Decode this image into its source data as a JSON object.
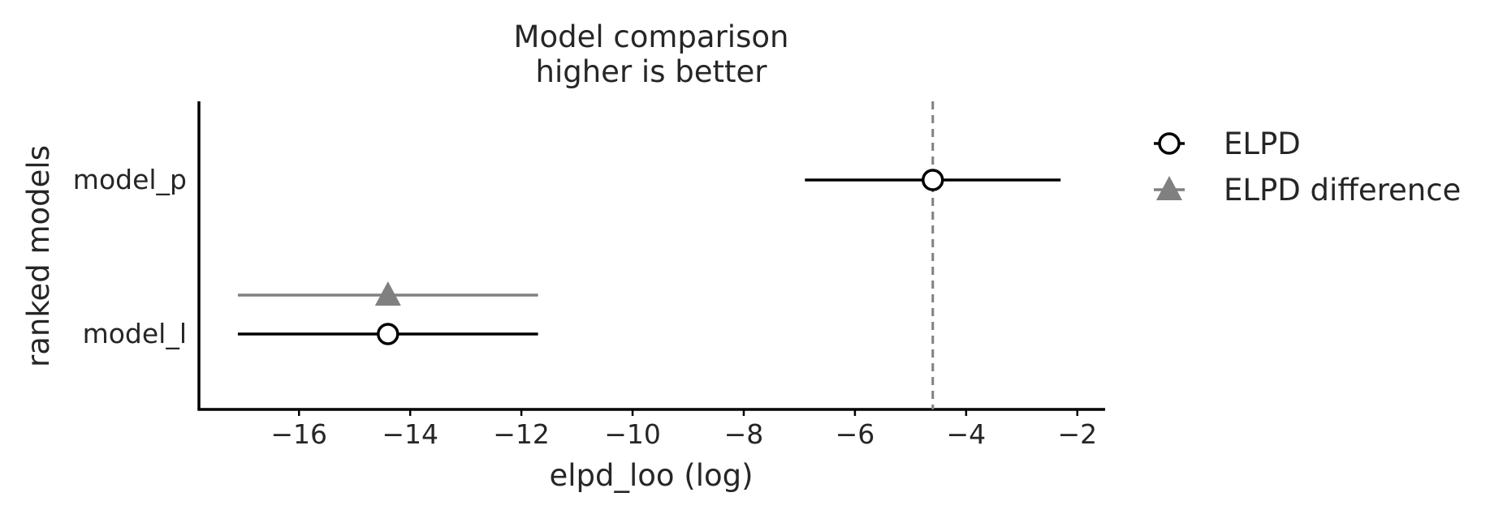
{
  "chart_data": {
    "type": "scatter",
    "title": "Model comparison\nhigher is better",
    "xlabel": "elpd_loo (log)",
    "ylabel": "ranked models",
    "xlim": [
      -17.8,
      -1.5
    ],
    "xticks": [
      -16,
      -14,
      -12,
      -10,
      -8,
      -6,
      -4,
      -2
    ],
    "xtick_labels": [
      "−16",
      "−14",
      "−12",
      "−10",
      "−8",
      "−6",
      "−4",
      "−2"
    ],
    "categories": [
      "model_p",
      "model_l"
    ],
    "series": [
      {
        "name": "ELPD",
        "marker": "circle",
        "color": "#000000",
        "points": [
          {
            "model": "model_p",
            "x": -4.6,
            "low": -6.9,
            "high": -2.3
          },
          {
            "model": "model_l",
            "x": -14.4,
            "low": -17.1,
            "high": -11.7
          }
        ]
      },
      {
        "name": "ELPD difference",
        "marker": "triangle",
        "color": "#808080",
        "points": [
          {
            "model": "model_l",
            "x": -14.4,
            "low": -17.1,
            "high": -11.7
          }
        ]
      }
    ],
    "reference_line": {
      "x": -4.6,
      "style": "dashed",
      "color": "#808080"
    },
    "legend": "outside-right",
    "grid": false
  }
}
